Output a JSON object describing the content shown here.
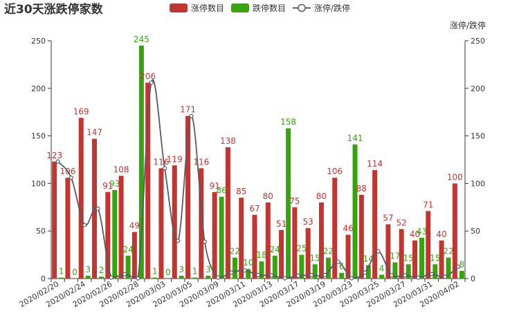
{
  "chart_data": {
    "type": "bar",
    "title": "近30天涨跌停家数",
    "legend": [
      "涨停数目",
      "跌停数目",
      "涨停/跌停"
    ],
    "legend_position": "top-center",
    "right_axis_title": "涨停/跌停",
    "colors": {
      "up": "#c23531",
      "down": "#36a30f",
      "ratio": "#545a66",
      "axis": "#333333"
    },
    "categories": [
      "2020/02/20",
      "2020/02/21",
      "2020/02/24",
      "2020/02/25",
      "2020/02/26",
      "2020/02/27",
      "2020/02/28",
      "2020/03/02",
      "2020/03/03",
      "2020/03/04",
      "2020/03/05",
      "2020/03/06",
      "2020/03/09",
      "2020/03/10",
      "2020/03/11",
      "2020/03/12",
      "2020/03/13",
      "2020/03/16",
      "2020/03/17",
      "2020/03/18",
      "2020/03/19",
      "2020/03/20",
      "2020/03/23",
      "2020/03/24",
      "2020/03/25",
      "2020/03/26",
      "2020/03/27",
      "2020/03/30",
      "2020/03/31",
      "2020/04/01",
      "2020/04/02"
    ],
    "x_tick_labels": [
      "2020/02/20",
      "2020/02/24",
      "2020/02/26",
      "2020/02/28",
      "2020/03/03",
      "2020/03/05",
      "2020/03/09",
      "2020/03/11",
      "2020/03/13",
      "2020/03/17",
      "2020/03/19",
      "2020/03/23",
      "2020/03/25",
      "2020/03/27",
      "2020/03/31",
      "2020/04/02"
    ],
    "series": [
      {
        "name": "涨停数目",
        "values": [
          123,
          106,
          169,
          147,
          91,
          108,
          49,
          206,
          116,
          119,
          171,
          116,
          91,
          138,
          85,
          67,
          80,
          51,
          75,
          53,
          80,
          106,
          46,
          88,
          114,
          57,
          52,
          40,
          71,
          40,
          100
        ]
      },
      {
        "name": "跌停数目",
        "values": [
          1,
          0,
          3,
          2,
          93,
          24,
          245,
          1,
          0,
          3,
          1,
          3,
          86,
          22,
          10,
          18,
          24,
          158,
          25,
          15,
          22,
          6,
          141,
          14,
          4,
          17,
          15,
          43,
          15,
          22,
          8
        ]
      },
      {
        "name": "涨停/跌停",
        "values": [
          123,
          106,
          56.33,
          73.5,
          0.98,
          4.5,
          0.2,
          206,
          116,
          39.67,
          171,
          38.67,
          1.06,
          6.27,
          8.5,
          3.72,
          3.33,
          0.32,
          3,
          3.53,
          3.64,
          17.67,
          0.33,
          6.29,
          28.5,
          3.35,
          3.47,
          0.93,
          4.73,
          1.82,
          12.5
        ]
      }
    ],
    "ylim": [
      0,
      250
    ],
    "y2lim": [
      0,
      250
    ],
    "y_ticks": [
      0,
      50,
      100,
      150,
      200,
      250
    ],
    "grid": false
  }
}
